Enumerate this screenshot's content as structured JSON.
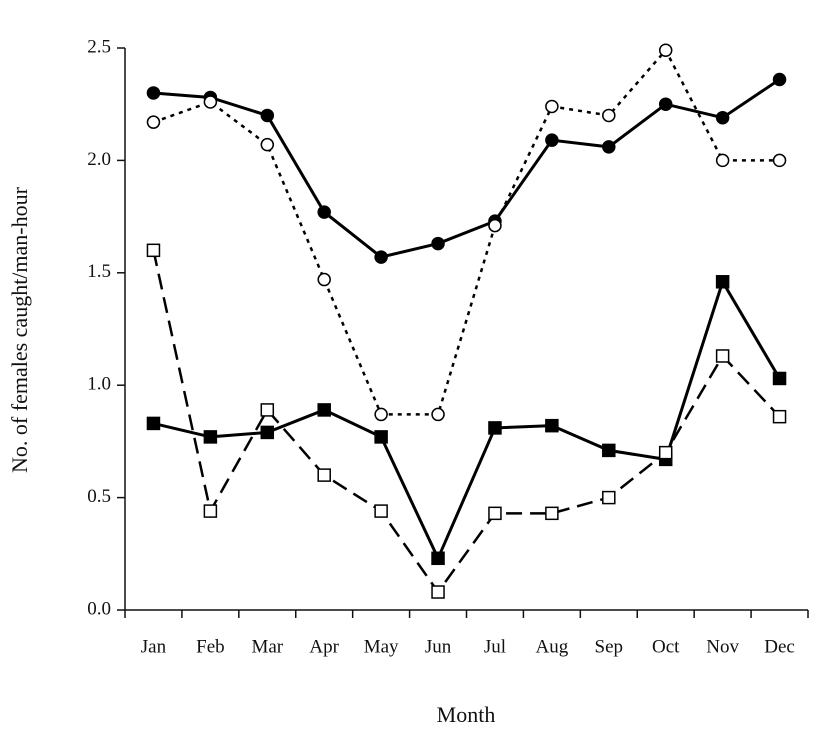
{
  "chart_data": {
    "type": "line",
    "x_label": "Month",
    "y_label": "No. of females caught/man-hour",
    "categories": [
      "Jan",
      "Feb",
      "Mar",
      "Apr",
      "May",
      "Jun",
      "Jul",
      "Aug",
      "Sep",
      "Oct",
      "Nov",
      "Dec"
    ],
    "series": [
      {
        "color": "#000000",
        "marker": "circle",
        "filled": true,
        "dash": "solid",
        "values": [
          2.3,
          2.28,
          2.2,
          1.77,
          1.57,
          1.63,
          1.73,
          2.09,
          2.06,
          2.25,
          2.19,
          2.36
        ]
      },
      {
        "color": "#000000",
        "marker": "circle",
        "filled": false,
        "dash": "dotted",
        "values": [
          2.17,
          2.26,
          2.07,
          1.47,
          0.87,
          0.87,
          1.71,
          2.24,
          2.2,
          2.49,
          2.0,
          2.0
        ]
      },
      {
        "color": "#000000",
        "marker": "square",
        "filled": true,
        "dash": "solid",
        "values": [
          0.83,
          0.77,
          0.79,
          0.89,
          0.77,
          0.23,
          0.81,
          0.82,
          0.71,
          0.67,
          1.46,
          1.03
        ]
      },
      {
        "color": "#000000",
        "marker": "square",
        "filled": false,
        "dash": "dashed",
        "values": [
          1.6,
          0.44,
          0.89,
          0.6,
          0.44,
          0.08,
          0.43,
          0.43,
          0.5,
          0.7,
          1.13,
          0.86
        ]
      }
    ],
    "ylim": [
      0,
      2.5
    ],
    "yticks": [
      {
        "value": 0,
        "label": "0.0"
      },
      {
        "value": 0.5,
        "label": "0.5"
      },
      {
        "value": 1,
        "label": "1.0"
      },
      {
        "value": 1.5,
        "label": "1.5"
      },
      {
        "value": 2,
        "label": "2.0"
      },
      {
        "value": 2.5,
        "label": "2.5"
      }
    ],
    "grid": false
  }
}
